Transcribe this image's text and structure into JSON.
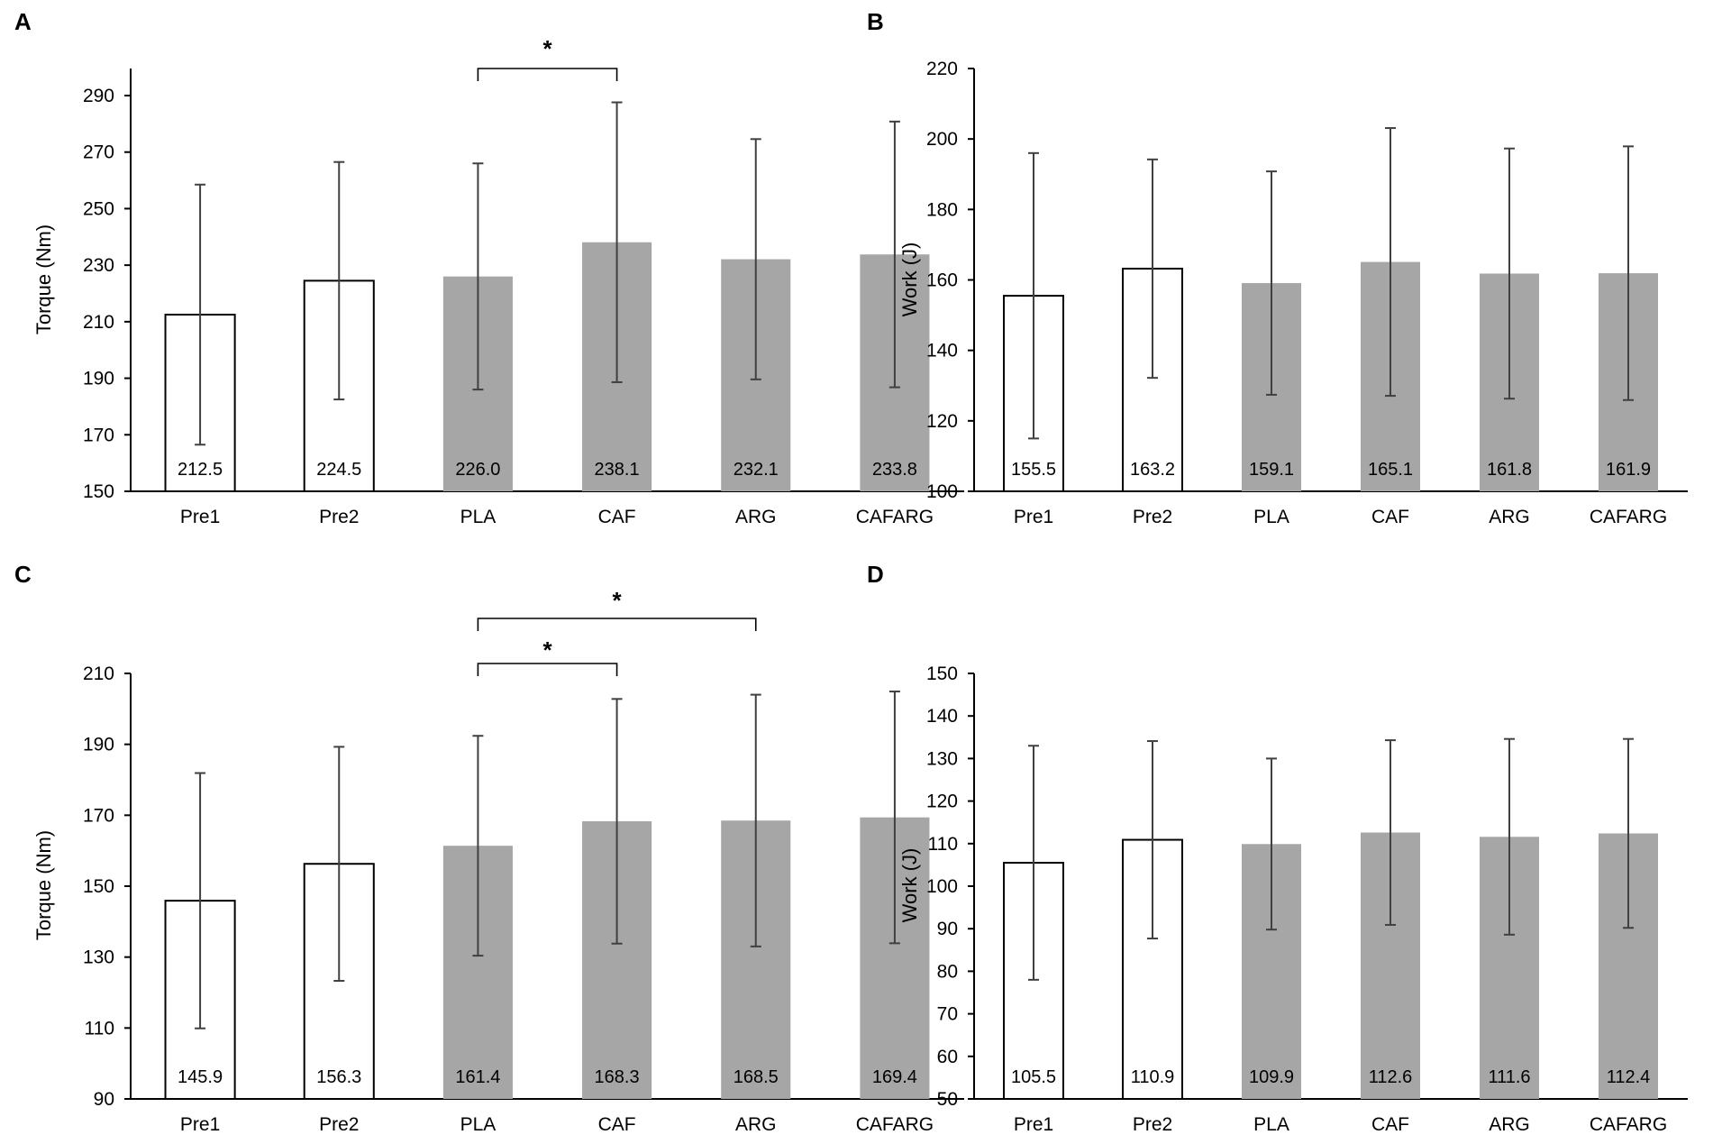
{
  "colors": {
    "pre_fill": "#ffffff",
    "pre_stroke": "#000000",
    "post_fill": "#a6a6a6",
    "error_bar": "#404040",
    "axis": "#000000"
  },
  "chart_data": [
    {
      "panel": "A",
      "type": "bar",
      "categories": [
        "Pre1",
        "Pre2",
        "PLA",
        "CAF",
        "ARG",
        "CAFARG"
      ],
      "values": [
        212.5,
        224.5,
        226.0,
        238.1,
        232.1,
        233.8
      ],
      "value_labels": [
        "212.5",
        "224.5",
        "226.0",
        "238.1",
        "232.1",
        "233.8"
      ],
      "error": [
        46.0,
        42.0,
        40.0,
        49.5,
        42.5,
        47.0
      ],
      "bar_style": [
        "open",
        "open",
        "filled",
        "filled",
        "filled",
        "filled"
      ],
      "ylabel": "Torque (Nm)",
      "ylim": [
        150,
        300
      ],
      "yticks": [
        150,
        170,
        190,
        210,
        230,
        250,
        270,
        290
      ],
      "significance": [
        {
          "from": "PLA",
          "to": "CAF",
          "label": "*"
        }
      ]
    },
    {
      "panel": "B",
      "type": "bar",
      "categories": [
        "Pre1",
        "Pre2",
        "PLA",
        "CAF",
        "ARG",
        "CAFARG"
      ],
      "values": [
        155.5,
        163.2,
        159.1,
        165.1,
        161.8,
        161.9
      ],
      "value_labels": [
        "155.5",
        "163.2",
        "159.1",
        "165.1",
        "161.8",
        "161.9"
      ],
      "error": [
        40.5,
        31.0,
        31.7,
        38.0,
        35.5,
        36.0
      ],
      "bar_style": [
        "open",
        "open",
        "filled",
        "filled",
        "filled",
        "filled"
      ],
      "ylabel": "Work (J)",
      "ylim": [
        100,
        220
      ],
      "yticks": [
        100,
        120,
        140,
        160,
        180,
        200,
        220
      ],
      "significance": []
    },
    {
      "panel": "C",
      "type": "bar",
      "categories": [
        "Pre1",
        "Pre2",
        "PLA",
        "CAF",
        "ARG",
        "CAFARG"
      ],
      "values": [
        145.9,
        156.3,
        161.4,
        168.3,
        168.5,
        169.4
      ],
      "value_labels": [
        "145.9",
        "156.3",
        "161.4",
        "168.3",
        "168.5",
        "169.4"
      ],
      "error": [
        36.0,
        33.0,
        31.0,
        34.5,
        35.5,
        35.5
      ],
      "bar_style": [
        "open",
        "open",
        "filled",
        "filled",
        "filled",
        "filled"
      ],
      "ylabel": "Torque (Nm)",
      "ylim": [
        90,
        210
      ],
      "yticks": [
        90,
        110,
        130,
        150,
        170,
        190,
        210
      ],
      "significance": [
        {
          "from": "PLA",
          "to": "CAF",
          "label": "*"
        },
        {
          "from": "PLA",
          "to": "ARG",
          "label": "*"
        }
      ]
    },
    {
      "panel": "D",
      "type": "bar",
      "categories": [
        "Pre1",
        "Pre2",
        "PLA",
        "CAF",
        "ARG",
        "CAFARG"
      ],
      "values": [
        105.5,
        110.9,
        109.9,
        112.6,
        111.6,
        112.4
      ],
      "value_labels": [
        "105.5",
        "110.9",
        "109.9",
        "112.6",
        "111.6",
        "112.4"
      ],
      "error": [
        27.5,
        23.2,
        20.1,
        21.7,
        23.0,
        22.2
      ],
      "bar_style": [
        "open",
        "open",
        "filled",
        "filled",
        "filled",
        "filled"
      ],
      "ylabel": "Work (J)",
      "ylim": [
        50,
        150
      ],
      "yticks": [
        50,
        60,
        70,
        80,
        90,
        100,
        110,
        120,
        130,
        140,
        150
      ],
      "significance": []
    }
  ]
}
